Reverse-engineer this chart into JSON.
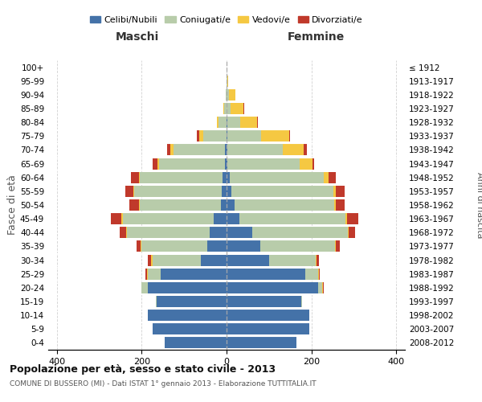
{
  "age_groups": [
    "0-4",
    "5-9",
    "10-14",
    "15-19",
    "20-24",
    "25-29",
    "30-34",
    "35-39",
    "40-44",
    "45-49",
    "50-54",
    "55-59",
    "60-64",
    "65-69",
    "70-74",
    "75-79",
    "80-84",
    "85-89",
    "90-94",
    "95-99",
    "100+"
  ],
  "birth_years": [
    "2008-2012",
    "2003-2007",
    "1998-2002",
    "1993-1997",
    "1988-1992",
    "1983-1987",
    "1978-1982",
    "1973-1977",
    "1968-1972",
    "1963-1967",
    "1958-1962",
    "1953-1957",
    "1948-1952",
    "1943-1947",
    "1938-1942",
    "1933-1937",
    "1928-1932",
    "1923-1927",
    "1918-1922",
    "1913-1917",
    "≤ 1912"
  ],
  "maschi": {
    "celibi": [
      145,
      175,
      185,
      165,
      185,
      155,
      60,
      45,
      40,
      30,
      14,
      12,
      10,
      4,
      4,
      0,
      0,
      0,
      0,
      0,
      0
    ],
    "coniugati": [
      0,
      0,
      0,
      2,
      15,
      30,
      115,
      155,
      195,
      215,
      190,
      205,
      195,
      155,
      120,
      55,
      18,
      5,
      2,
      0,
      0
    ],
    "vedovi": [
      0,
      0,
      0,
      0,
      0,
      2,
      2,
      2,
      2,
      2,
      2,
      2,
      2,
      4,
      8,
      10,
      5,
      2,
      0,
      0,
      0
    ],
    "divorziati": [
      0,
      0,
      0,
      0,
      0,
      5,
      8,
      10,
      15,
      25,
      22,
      20,
      18,
      12,
      8,
      5,
      0,
      0,
      0,
      0,
      0
    ]
  },
  "femmine": {
    "nubili": [
      165,
      195,
      195,
      175,
      215,
      185,
      100,
      80,
      60,
      30,
      18,
      12,
      8,
      2,
      2,
      2,
      2,
      0,
      0,
      0,
      0
    ],
    "coniugate": [
      0,
      0,
      0,
      2,
      10,
      30,
      110,
      175,
      225,
      250,
      235,
      240,
      220,
      170,
      130,
      80,
      30,
      10,
      5,
      2,
      0
    ],
    "vedove": [
      0,
      0,
      0,
      0,
      2,
      2,
      2,
      2,
      2,
      3,
      5,
      5,
      12,
      30,
      50,
      65,
      40,
      30,
      15,
      2,
      0
    ],
    "divorziate": [
      0,
      0,
      0,
      0,
      2,
      2,
      5,
      10,
      15,
      28,
      20,
      22,
      18,
      5,
      8,
      2,
      2,
      2,
      0,
      0,
      0
    ]
  },
  "colors": {
    "celibi_nubili": "#4472a8",
    "coniugati": "#b8ccaa",
    "vedovi": "#f5c842",
    "divorziati": "#c0392b"
  },
  "title": "Popolazione per età, sesso e stato civile - 2013",
  "subtitle": "COMUNE DI BUSSERO (MI) - Dati ISTAT 1° gennaio 2013 - Elaborazione TUTTITALIA.IT",
  "xlabel_left": "Maschi",
  "xlabel_right": "Femmine",
  "ylabel_left": "Fasce di età",
  "ylabel_right": "Anni di nascita",
  "xlim": 420,
  "background_color": "#ffffff",
  "grid_color": "#cccccc"
}
